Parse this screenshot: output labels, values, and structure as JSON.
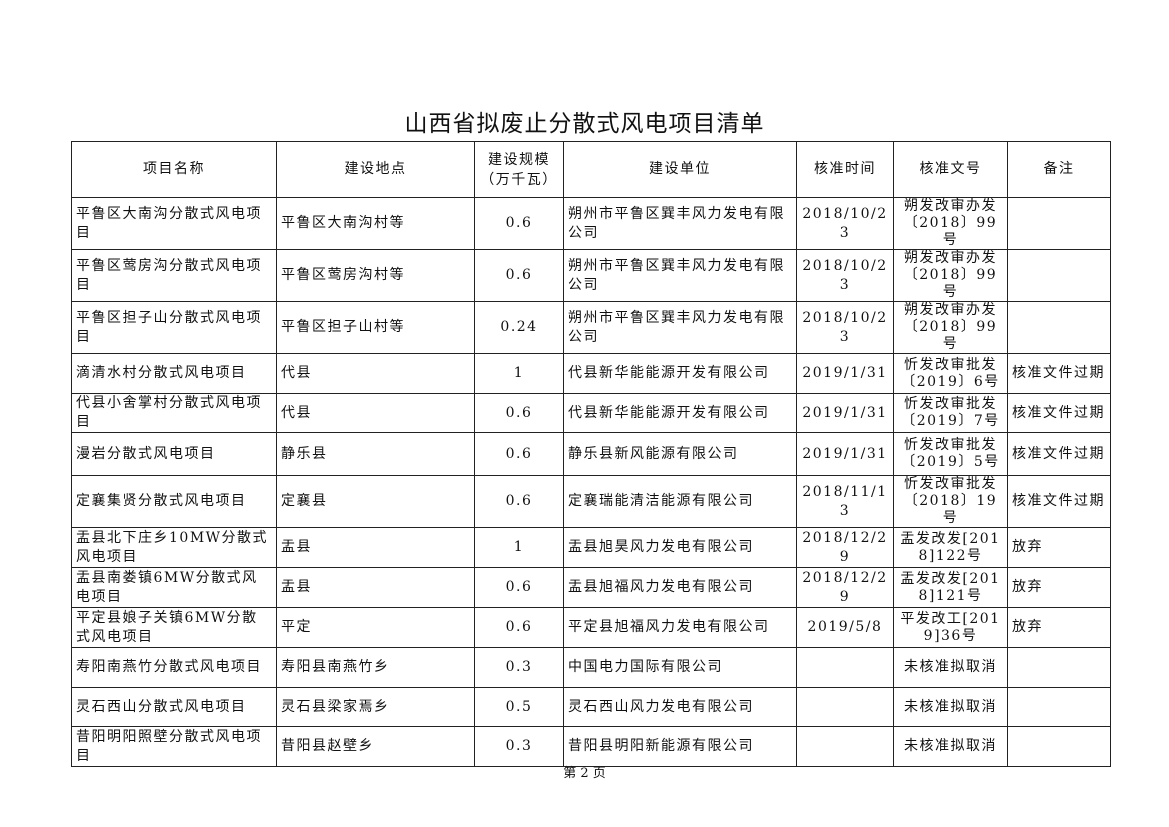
{
  "title": "山西省拟废止分散式风电项目清单",
  "headers": [
    "项目名称",
    "建设地点",
    "建设规模（万千瓦）",
    "建设单位",
    "核准时间",
    "核准文号",
    "备注"
  ],
  "rows": [
    [
      "平鲁区大南沟分散式风电项目",
      "平鲁区大南沟村等",
      "0.6",
      "朔州市平鲁区巽丰风力发电有限公司",
      "2018/10/23",
      "朔发改审办发〔2018〕99号",
      ""
    ],
    [
      "平鲁区莺房沟分散式风电项目",
      "平鲁区莺房沟村等",
      "0.6",
      "朔州市平鲁区巽丰风力发电有限公司",
      "2018/10/23",
      "朔发改审办发〔2018〕99号",
      ""
    ],
    [
      "平鲁区担子山分散式风电项目",
      "平鲁区担子山村等",
      "0.24",
      "朔州市平鲁区巽丰风力发电有限公司",
      "2018/10/23",
      "朔发改审办发〔2018〕99号",
      ""
    ],
    [
      "滴清水村分散式风电项目",
      "代县",
      "1",
      "代县新华能能源开发有限公司",
      "2019/1/31",
      "忻发改审批发〔2019〕6号",
      "核准文件过期"
    ],
    [
      "代县小舍掌村分散式风电项目",
      "代县",
      "0.6",
      "代县新华能能源开发有限公司",
      "2019/1/31",
      "忻发改审批发〔2019〕7号",
      "核准文件过期"
    ],
    [
      "漫岩分散式风电项目",
      "静乐县",
      "0.6",
      "静乐县新风能源有限公司",
      "2019/1/31",
      "忻发改审批发〔2019〕5号",
      "核准文件过期"
    ],
    [
      "定襄集贤分散式风电项目",
      "定襄县",
      "0.6",
      "定襄瑞能清洁能源有限公司",
      "2018/11/13",
      "忻发改审批发〔2018〕19号",
      "核准文件过期"
    ],
    [
      "盂县北下庄乡10MW分散式风电项目",
      "盂县",
      "1",
      "盂县旭昊风力发电有限公司",
      "2018/12/29",
      "盂发改发[2018]122号",
      "放弃"
    ],
    [
      "盂县南娄镇6MW分散式风电项目",
      "盂县",
      "0.6",
      "盂县旭福风力发电有限公司",
      "2018/12/29",
      "盂发改发[2018]121号",
      "放弃"
    ],
    [
      "平定县娘子关镇6MW分散式风电项目",
      "平定",
      "0.6",
      "平定县旭福风力发电有限公司",
      "2019/5/8",
      "平发改工[2019]36号",
      "放弃"
    ],
    [
      "寿阳南燕竹分散式风电项目",
      "寿阳县南燕竹乡",
      "0.3",
      "中国电力国际有限公司",
      "",
      "未核准拟取消",
      ""
    ],
    [
      "灵石西山分散式风电项目",
      "灵石县梁家焉乡",
      "0.5",
      "灵石西山风力发电有限公司",
      "",
      "未核准拟取消",
      ""
    ],
    [
      "昔阳明阳照壁分散式风电项目",
      "昔阳县赵壁乡",
      "0.3",
      "昔阳县明阳新能源有限公司",
      "",
      "未核准拟取消",
      ""
    ]
  ],
  "footer": "第 2 页"
}
